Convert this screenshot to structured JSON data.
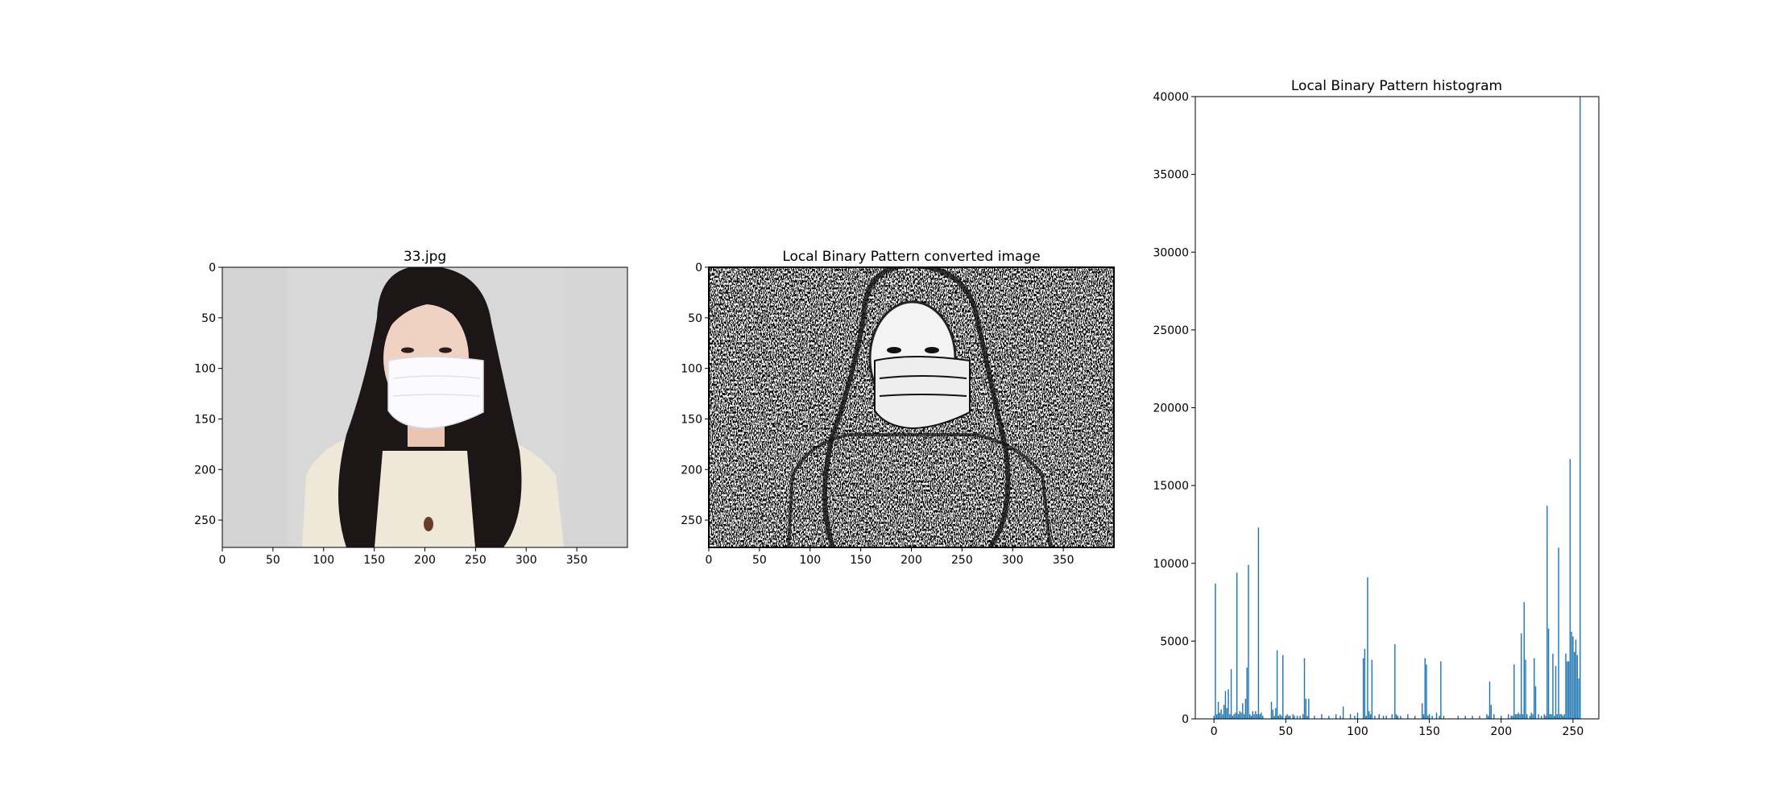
{
  "chart_data": [
    {
      "type": "image",
      "title": "33.jpg",
      "image_description": "photo of a woman with long dark hair wearing a white surgical face mask and cream cardigan, light grey background",
      "x_ticks": [
        0,
        50,
        100,
        150,
        200,
        250,
        300,
        350
      ],
      "y_ticks": [
        0,
        50,
        100,
        150,
        200,
        250
      ],
      "xlim": [
        0,
        400
      ],
      "ylim": [
        277,
        0
      ]
    },
    {
      "type": "image",
      "title": "Local Binary Pattern converted image",
      "image_description": "black and white local binary pattern texture image of the same masked woman",
      "x_ticks": [
        0,
        50,
        100,
        150,
        200,
        250,
        300,
        350
      ],
      "y_ticks": [
        0,
        50,
        100,
        150,
        200,
        250
      ],
      "xlim": [
        0,
        400
      ],
      "ylim": [
        277,
        0
      ]
    },
    {
      "type": "bar",
      "title": "Local Binary Pattern histogram",
      "bar_color": "#1f77b4",
      "x_ticks": [
        0,
        50,
        100,
        150,
        200,
        250
      ],
      "y_ticks": [
        0,
        5000,
        10000,
        15000,
        20000,
        25000,
        30000,
        35000,
        40000
      ],
      "xlim": [
        -13,
        268
      ],
      "ylim": [
        0,
        40000
      ],
      "x": [
        0,
        1,
        2,
        3,
        4,
        5,
        6,
        7,
        8,
        9,
        10,
        11,
        12,
        13,
        14,
        15,
        16,
        17,
        18,
        19,
        20,
        21,
        22,
        23,
        24,
        25,
        26,
        27,
        28,
        29,
        30,
        31,
        32,
        33,
        34,
        40,
        41,
        42,
        43,
        44,
        45,
        46,
        47,
        48,
        50,
        51,
        52,
        53,
        55,
        56,
        58,
        60,
        62,
        63,
        64,
        65,
        66,
        70,
        75,
        80,
        85,
        88,
        90,
        95,
        98,
        100,
        104,
        105,
        106,
        107,
        108,
        109,
        110,
        112,
        115,
        118,
        120,
        124,
        126,
        127,
        128,
        130,
        135,
        140,
        145,
        146,
        147,
        148,
        149,
        150,
        152,
        155,
        157,
        158,
        160,
        170,
        175,
        180,
        185,
        190,
        191,
        192,
        193,
        195,
        200,
        205,
        207,
        208,
        209,
        210,
        211,
        212,
        213,
        214,
        215,
        216,
        217,
        218,
        220,
        221,
        222,
        223,
        224,
        226,
        228,
        230,
        231,
        232,
        233,
        234,
        235,
        236,
        237,
        238,
        239,
        240,
        241,
        242,
        243,
        244,
        245,
        246,
        247,
        248,
        249,
        250,
        251,
        252,
        253,
        254,
        255
      ],
      "values": [
        200,
        8700,
        300,
        1100,
        400,
        600,
        300,
        900,
        1800,
        700,
        1900,
        300,
        3200,
        200,
        300,
        400,
        9400,
        300,
        500,
        400,
        1000,
        300,
        1300,
        3300,
        9900,
        300,
        200,
        500,
        300,
        500,
        300,
        12300,
        300,
        400,
        200,
        1100,
        600,
        200,
        700,
        4400,
        200,
        300,
        200,
        4100,
        200,
        300,
        200,
        200,
        300,
        200,
        200,
        200,
        300,
        3900,
        1300,
        200,
        1300,
        200,
        300,
        200,
        300,
        200,
        800,
        300,
        200,
        400,
        3900,
        4500,
        200,
        9100,
        500,
        300,
        3800,
        200,
        300,
        200,
        200,
        300,
        4800,
        300,
        200,
        200,
        300,
        200,
        1000,
        300,
        3900,
        3500,
        200,
        300,
        200,
        400,
        200,
        3700,
        200,
        200,
        200,
        200,
        200,
        300,
        200,
        2400,
        900,
        300,
        200,
        300,
        200,
        200,
        3500,
        300,
        300,
        400,
        300,
        5500,
        300,
        7500,
        3800,
        300,
        200,
        400,
        300,
        3900,
        2100,
        300,
        200,
        300,
        200,
        13700,
        5800,
        300,
        300,
        4200,
        200,
        3400,
        300,
        11000,
        300,
        300,
        200,
        300,
        4200,
        3700,
        3700,
        16700,
        5600,
        5300,
        4300,
        5100,
        4100,
        2600,
        40000
      ]
    }
  ]
}
